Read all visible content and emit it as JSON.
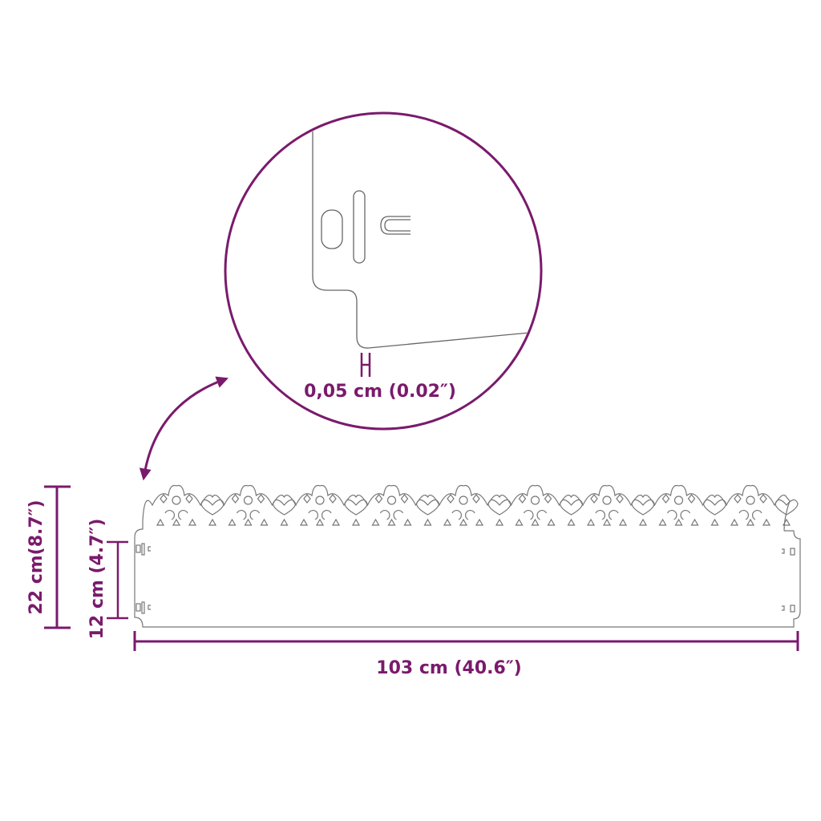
{
  "colors": {
    "accent": "#7a1a6c",
    "outline": "#777777"
  },
  "dimensions": {
    "height_total": "22 cm(8.7″)",
    "height_body": "12 cm (4.7″)",
    "length": "103 cm (40.6″)",
    "thickness": "0,05 cm (0.02″)"
  }
}
